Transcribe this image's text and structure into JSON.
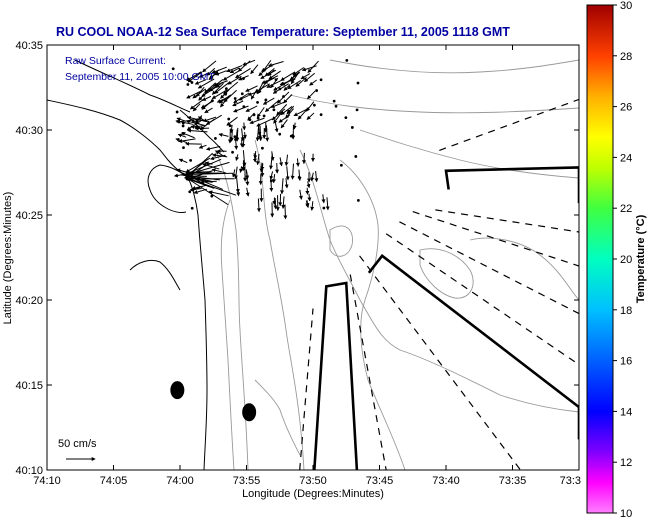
{
  "chart_data": {
    "type": "map",
    "title": "RU COOL  NOAA-12  Sea Surface Temperature:  September 11, 2005 1118 GMT",
    "xlabel": "Longitude (Degrees:Minutes)",
    "ylabel": "Latitude (Degrees:Minutes)",
    "x_ticks": [
      {
        "value": 0,
        "label": "74:10"
      },
      {
        "value": 5,
        "label": "74:05"
      },
      {
        "value": 10,
        "label": "74:00"
      },
      {
        "value": 15,
        "label": "73:55"
      },
      {
        "value": 20,
        "label": "73:50"
      },
      {
        "value": 25,
        "label": "73:45"
      },
      {
        "value": 30,
        "label": "73:40"
      },
      {
        "value": 35,
        "label": "73:35"
      },
      {
        "value": 40,
        "label": "73:3"
      }
    ],
    "y_ticks": [
      {
        "value": 0,
        "label": "40:10"
      },
      {
        "value": 5,
        "label": "40:15"
      },
      {
        "value": 10,
        "label": "40:20"
      },
      {
        "value": 15,
        "label": "40:25"
      },
      {
        "value": 20,
        "label": "40:30"
      },
      {
        "value": 25,
        "label": "40:35"
      }
    ],
    "xlim": [
      0,
      40
    ],
    "ylim": [
      0,
      25
    ],
    "annotation_lines": [
      "Raw Surface Current:",
      "September 11, 2005 10:00 GMT"
    ],
    "scale_label": "50 cm/s",
    "colorbar": {
      "label": "Temperature (°C)",
      "min": 10,
      "max": 30,
      "ticks": [
        10,
        12,
        14,
        16,
        18,
        20,
        22,
        24,
        26,
        28,
        30
      ]
    },
    "markers": [
      {
        "x": 9.8,
        "y": 4.7
      },
      {
        "x": 15.2,
        "y": 3.4
      }
    ],
    "transects": [
      {
        "style": "solid",
        "points": [
          [
            20.1,
            0
          ],
          [
            21.0,
            10.8
          ],
          [
            22.5,
            11.0
          ],
          [
            23.3,
            0
          ]
        ]
      },
      {
        "style": "solid",
        "points": [
          [
            24.2,
            11.6
          ],
          [
            25.2,
            12.6
          ],
          [
            40,
            3.7
          ],
          [
            40,
            1.8
          ]
        ]
      },
      {
        "style": "solid",
        "points": [
          [
            30.2,
            16.5
          ],
          [
            30.0,
            17.6
          ],
          [
            40,
            17.8
          ],
          [
            40,
            15.7
          ]
        ]
      },
      {
        "style": "dashed",
        "points": [
          [
            19.0,
            0
          ],
          [
            20.0,
            9.5
          ]
        ]
      },
      {
        "style": "dashed",
        "points": [
          [
            22.8,
            11.5
          ],
          [
            25.5,
            0
          ]
        ]
      },
      {
        "style": "dashed",
        "points": [
          [
            23.5,
            12.6
          ],
          [
            35.6,
            0
          ]
        ]
      },
      {
        "style": "dashed",
        "points": [
          [
            25.5,
            13.9
          ],
          [
            40,
            6.2
          ]
        ]
      },
      {
        "style": "dashed",
        "points": [
          [
            26.5,
            14.6
          ],
          [
            40,
            9.2
          ]
        ]
      },
      {
        "style": "dashed",
        "points": [
          [
            27.5,
            15.2
          ],
          [
            40,
            12.0
          ]
        ]
      },
      {
        "style": "dashed",
        "points": [
          [
            29.5,
            18.8
          ],
          [
            40,
            21.8
          ]
        ]
      },
      {
        "style": "dashed",
        "points": [
          [
            29.2,
            15.3
          ],
          [
            40,
            14.0
          ]
        ]
      }
    ]
  }
}
